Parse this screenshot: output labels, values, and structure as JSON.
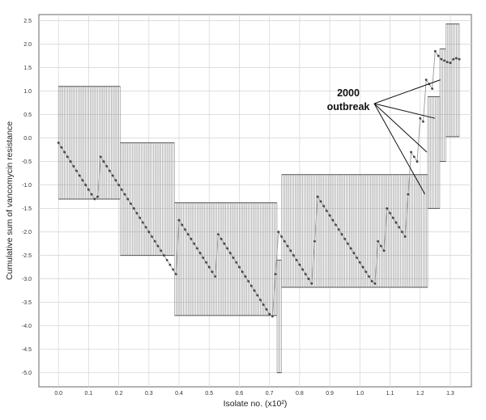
{
  "chart_data": {
    "type": "line",
    "title": "",
    "xlabel": "Isolate no. (x10²)",
    "ylabel": "Cumulative sum of vancomycin resistance",
    "xlim": [
      -0.065,
      1.37
    ],
    "ylim": [
      -5.3,
      2.63
    ],
    "grid": true,
    "x_ticks": [
      "0.0",
      "0.1",
      "0.2",
      "0.3",
      "0.4",
      "0.5",
      "0.6",
      "0.7",
      "0.8",
      "0.9",
      "1.0",
      "1.1",
      "1.2",
      "1.3"
    ],
    "y_ticks": [
      "2.5",
      "2.0",
      "1.5",
      "1.0",
      "0.5",
      "0.0",
      "-0.5",
      "-1.0",
      "-1.5",
      "-2.0",
      "-2.5",
      "-3.0",
      "-3.5",
      "-4.0",
      "-4.5",
      "-5.0"
    ],
    "annotation": {
      "line1": "2000",
      "line2": "outbreak",
      "targets": [
        [
          1.216,
          -1.2
        ],
        [
          1.222,
          -0.3
        ],
        [
          1.249,
          0.42
        ],
        [
          1.267,
          1.24
        ]
      ]
    },
    "segments": [
      {
        "x_start": 0.0,
        "x_end": 0.205,
        "lower": -1.3,
        "upper": 1.1
      },
      {
        "x_start": 0.205,
        "x_end": 0.385,
        "lower": -2.5,
        "upper": -0.1
      },
      {
        "x_start": 0.385,
        "x_end": 0.725,
        "lower": -3.78,
        "upper": -1.38
      },
      {
        "x_start": 0.725,
        "x_end": 0.74,
        "lower": -5.0,
        "upper": -2.6
      },
      {
        "x_start": 0.74,
        "x_end": 1.225,
        "lower": -3.18,
        "upper": -0.78
      },
      {
        "x_start": 1.225,
        "x_end": 1.265,
        "lower": -1.5,
        "upper": 0.88
      },
      {
        "x_start": 1.265,
        "x_end": 1.285,
        "lower": -0.5,
        "upper": 1.9
      },
      {
        "x_start": 1.285,
        "x_end": 1.33,
        "lower": 0.03,
        "upper": 2.43
      }
    ],
    "series": [
      {
        "x": [
          0.0,
          0.01,
          0.02,
          0.03,
          0.04,
          0.05,
          0.06,
          0.07,
          0.08,
          0.09,
          0.1,
          0.11,
          0.12,
          0.13,
          0.14,
          0.15,
          0.16,
          0.17,
          0.18,
          0.19,
          0.2,
          0.21,
          0.22,
          0.23,
          0.24,
          0.25,
          0.26,
          0.27,
          0.28,
          0.29,
          0.3,
          0.31,
          0.32,
          0.33,
          0.34,
          0.35,
          0.36,
          0.37,
          0.38,
          0.39,
          0.4,
          0.41,
          0.42,
          0.43,
          0.44,
          0.45,
          0.46,
          0.47,
          0.48,
          0.49,
          0.5,
          0.51,
          0.52,
          0.53,
          0.54,
          0.55,
          0.56,
          0.57,
          0.58,
          0.59,
          0.6,
          0.61,
          0.62,
          0.63,
          0.64,
          0.65,
          0.66,
          0.67,
          0.68,
          0.69,
          0.7,
          0.71,
          0.72,
          0.73,
          0.74,
          0.75,
          0.76,
          0.77,
          0.78,
          0.79,
          0.8,
          0.81,
          0.82,
          0.83,
          0.84,
          0.85,
          0.86,
          0.87,
          0.88,
          0.89,
          0.9,
          0.91,
          0.92,
          0.93,
          0.94,
          0.95,
          0.96,
          0.97,
          0.98,
          0.99,
          1.0,
          1.01,
          1.02,
          1.03,
          1.04,
          1.05,
          1.06,
          1.07,
          1.08,
          1.09,
          1.1,
          1.11,
          1.12,
          1.13,
          1.14,
          1.15,
          1.16,
          1.17,
          1.18,
          1.19,
          1.2,
          1.21,
          1.22,
          1.23,
          1.24,
          1.25,
          1.26,
          1.27,
          1.28,
          1.29,
          1.3,
          1.31,
          1.32,
          1.33
        ],
        "y": [
          -0.1,
          -0.2,
          -0.3,
          -0.4,
          -0.5,
          -0.6,
          -0.7,
          -0.8,
          -0.9,
          -1.0,
          -1.1,
          -1.2,
          -1.3,
          -1.25,
          -0.4,
          -0.5,
          -0.6,
          -0.7,
          -0.8,
          -0.9,
          -1.0,
          -1.1,
          -1.2,
          -1.3,
          -1.4,
          -1.5,
          -1.6,
          -1.7,
          -1.8,
          -1.9,
          -2.0,
          -2.1,
          -2.2,
          -2.3,
          -2.4,
          -2.5,
          -2.6,
          -2.7,
          -2.8,
          -2.9,
          -1.75,
          -1.85,
          -1.95,
          -2.05,
          -2.15,
          -2.25,
          -2.35,
          -2.45,
          -2.55,
          -2.65,
          -2.75,
          -2.85,
          -2.95,
          -2.05,
          -2.15,
          -2.25,
          -2.35,
          -2.45,
          -2.55,
          -2.65,
          -2.75,
          -2.85,
          -2.95,
          -3.05,
          -3.15,
          -3.25,
          -3.35,
          -3.45,
          -3.55,
          -3.65,
          -3.75,
          -3.8,
          -2.9,
          -2.0,
          -2.1,
          -2.2,
          -2.3,
          -2.4,
          -2.5,
          -2.6,
          -2.7,
          -2.8,
          -2.9,
          -3.0,
          -3.1,
          -2.2,
          -1.25,
          -1.35,
          -1.45,
          -1.55,
          -1.65,
          -1.75,
          -1.85,
          -1.95,
          -2.05,
          -2.15,
          -2.25,
          -2.35,
          -2.45,
          -2.55,
          -2.65,
          -2.75,
          -2.85,
          -2.95,
          -3.05,
          -3.1,
          -2.2,
          -2.3,
          -2.4,
          -1.5,
          -1.6,
          -1.7,
          -1.8,
          -1.9,
          -2.0,
          -2.1,
          -1.2,
          -0.3,
          -0.4,
          -0.5,
          0.42,
          0.35,
          1.24,
          1.15,
          1.05,
          1.85,
          1.75,
          1.68,
          1.65,
          1.62,
          1.6,
          1.68,
          1.7,
          1.68
        ]
      }
    ]
  }
}
